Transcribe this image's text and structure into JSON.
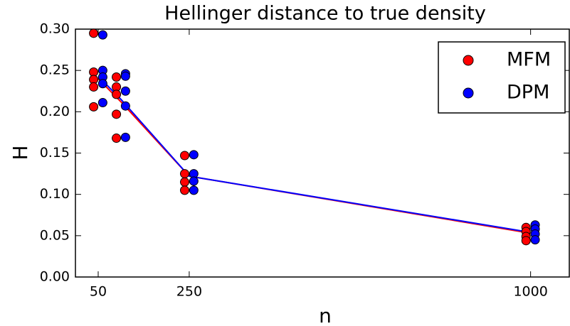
{
  "chart_data": {
    "type": "scatter",
    "title": "Hellinger distance to true density",
    "xlabel": "n",
    "ylabel": "H",
    "series": [
      {
        "name": "MFM",
        "color": "#ff0000",
        "x": [
          40,
          40,
          40,
          40,
          40,
          90,
          90,
          90,
          90,
          90,
          240,
          240,
          240,
          240,
          990,
          990,
          990,
          990
        ],
        "values": [
          0.295,
          0.248,
          0.239,
          0.23,
          0.206,
          0.242,
          0.23,
          0.221,
          0.197,
          0.168,
          0.147,
          0.125,
          0.115,
          0.105,
          0.06,
          0.055,
          0.049,
          0.044
        ]
      },
      {
        "name": "DPM",
        "color": "#0000ff",
        "x": [
          60,
          60,
          60,
          60,
          60,
          110,
          110,
          110,
          110,
          110,
          260,
          260,
          260,
          260,
          1010,
          1010,
          1010,
          1010
        ],
        "values": [
          0.293,
          0.25,
          0.242,
          0.234,
          0.211,
          0.246,
          0.243,
          0.225,
          0.207,
          0.169,
          0.148,
          0.125,
          0.116,
          0.105,
          0.063,
          0.058,
          0.052,
          0.045
        ]
      }
    ],
    "lines": [
      {
        "color": "#ff0000",
        "x": [
          50,
          100,
          250,
          1000
        ],
        "values": [
          0.24,
          0.212,
          0.122,
          0.053
        ]
      },
      {
        "color": "#0000ff",
        "x": [
          50,
          100,
          250,
          1000
        ],
        "values": [
          0.243,
          0.215,
          0.122,
          0.054
        ]
      }
    ],
    "xlim": [
      0,
      1085
    ],
    "xticks": [
      50,
      250,
      1000
    ],
    "ylim": [
      0,
      0.3
    ],
    "yticks": [
      {
        "value": 0,
        "label": "0.00"
      },
      {
        "value": 0.05,
        "label": "0.05"
      },
      {
        "value": 0.1,
        "label": "0.10"
      },
      {
        "value": 0.15,
        "label": "0.15"
      },
      {
        "value": 0.2,
        "label": "0.20"
      },
      {
        "value": 0.25,
        "label": "0.25"
      },
      {
        "value": 0.3,
        "label": "0.30"
      }
    ],
    "legend": "upper right"
  }
}
